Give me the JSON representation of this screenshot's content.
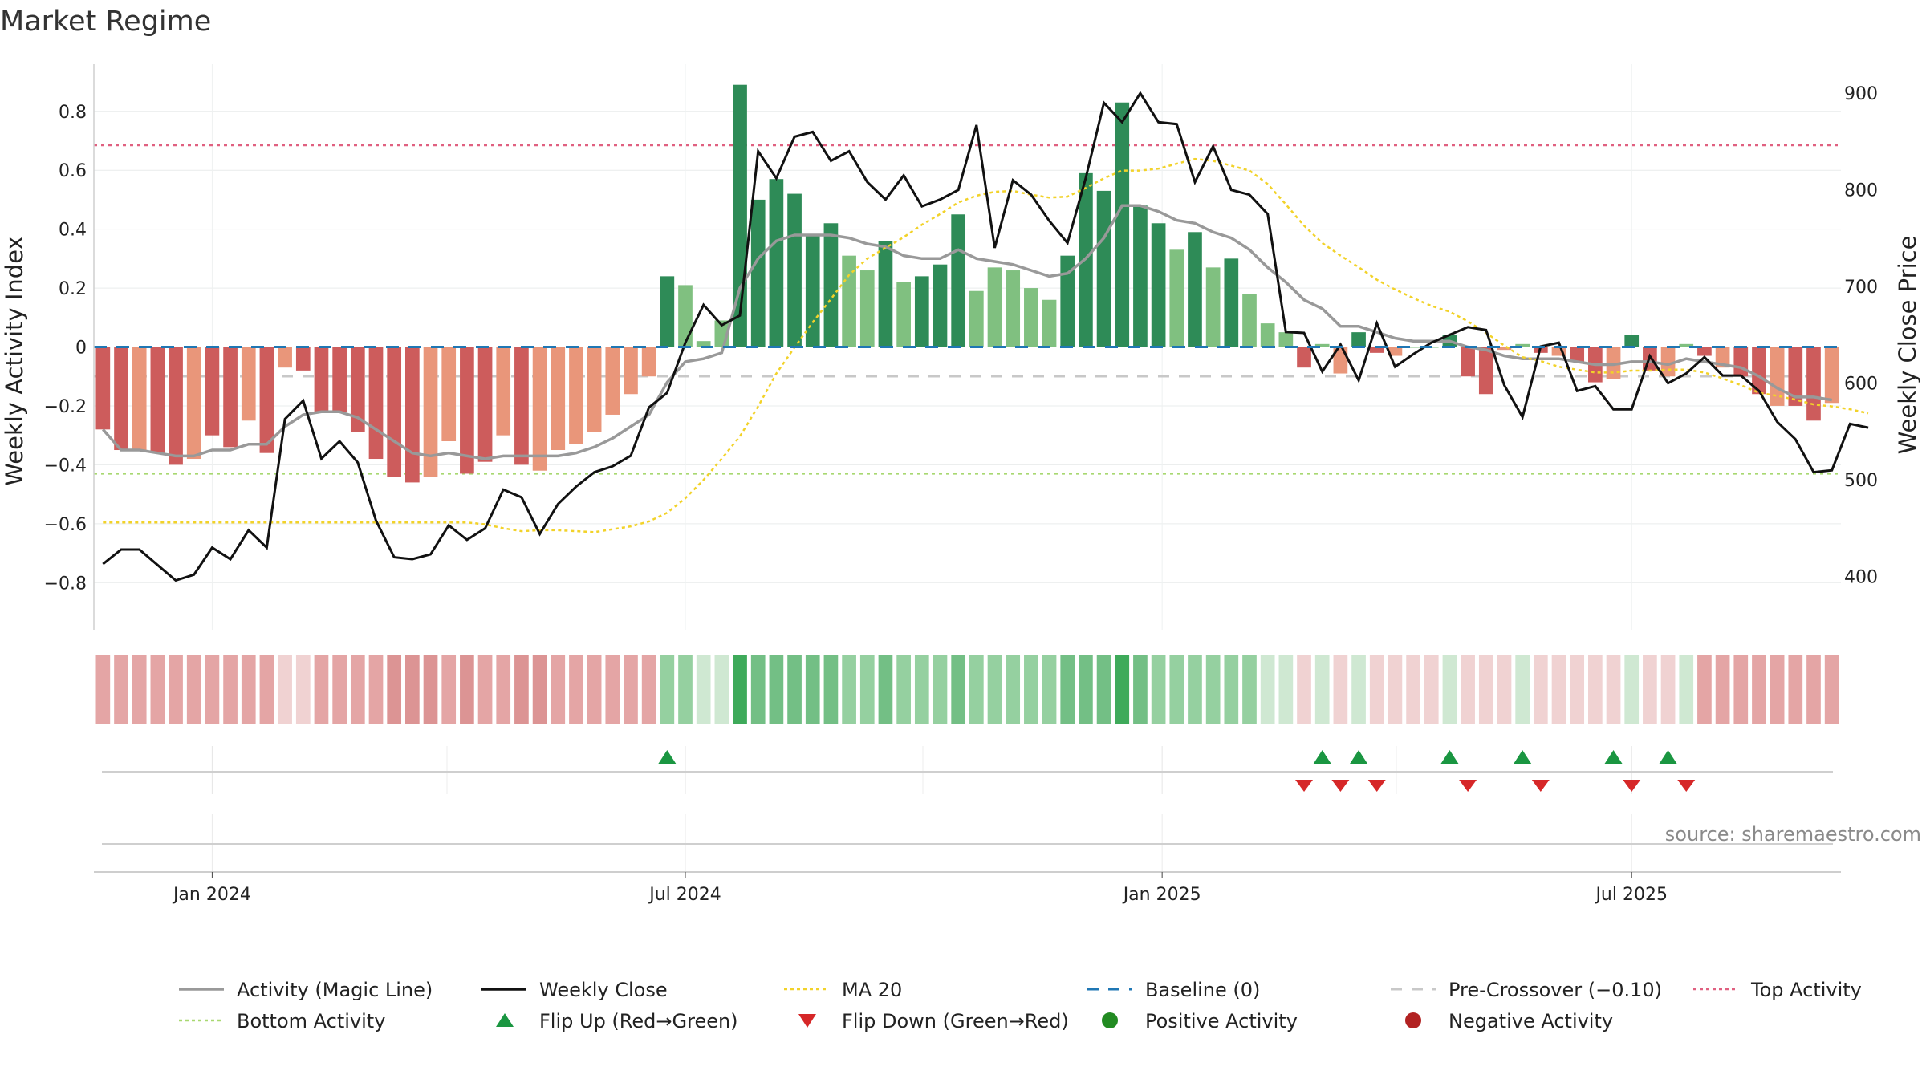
{
  "chart_data": {
    "type": "bar",
    "title": "Market Regime",
    "ylabel_left": "Weekly Activity Index",
    "ylabel_right": "Weekly Close Price",
    "source": "source: sharemaestro.com",
    "left_ylim": [
      -0.96,
      0.96
    ],
    "left_ticks": [
      "0.8",
      "0.6",
      "0.4",
      "0.2",
      "0",
      "−0.2",
      "−0.4",
      "−0.6",
      "−0.8"
    ],
    "left_tick_values": [
      0.8,
      0.6,
      0.4,
      0.2,
      0,
      -0.2,
      -0.4,
      -0.6,
      -0.8
    ],
    "right_ylim": [
      345,
      930
    ],
    "right_ticks": [
      "900",
      "800",
      "700",
      "600",
      "500",
      "400"
    ],
    "right_tick_values": [
      900,
      800,
      700,
      600,
      500,
      400
    ],
    "x_ticks": [
      {
        "label": "Jan 2024",
        "week": 6.5
      },
      {
        "label": "Jul 2024",
        "week": 32.5
      },
      {
        "label": "Jan 2025",
        "week": 58.7
      },
      {
        "label": "Jul 2025",
        "week": 84.5
      }
    ],
    "grid": true,
    "legend_position": "bottom",
    "colors": {
      "strong_pos": "#2e8b57",
      "weak_pos": "#80c080",
      "strong_neg": "#cd5c5c",
      "weak_neg": "#e9967a",
      "magic_line": "#999999",
      "close": "#111111",
      "ma20": "#f2d229",
      "baseline": "#1f77b4",
      "precross": "#c8c8c8",
      "top": "#e06080",
      "bottom": "#a8d870",
      "flip_up": "#1a9641",
      "flip_down": "#d62728",
      "pos_dot": "#228b22",
      "neg_dot": "#b22222"
    },
    "reference_lines": {
      "baseline": 0,
      "pre_crossover": -0.1,
      "top_activity": 0.685,
      "bottom_activity": -0.43
    },
    "activity": [
      -0.28,
      -0.35,
      -0.35,
      -0.36,
      -0.4,
      -0.38,
      -0.3,
      -0.34,
      -0.25,
      -0.36,
      -0.07,
      -0.08,
      -0.22,
      -0.22,
      -0.29,
      -0.38,
      -0.44,
      -0.46,
      -0.44,
      -0.32,
      -0.43,
      -0.39,
      -0.3,
      -0.4,
      -0.42,
      -0.35,
      -0.33,
      -0.29,
      -0.23,
      -0.16,
      -0.1,
      0.24,
      0.21,
      0.02,
      0.09,
      0.89,
      0.5,
      0.57,
      0.52,
      0.38,
      0.42,
      0.31,
      0.26,
      0.36,
      0.22,
      0.24,
      0.28,
      0.45,
      0.19,
      0.27,
      0.26,
      0.2,
      0.16,
      0.31,
      0.59,
      0.53,
      0.83,
      0.48,
      0.42,
      0.33,
      0.39,
      0.27,
      0.3,
      0.18,
      0.08,
      0.05,
      -0.07,
      0.01,
      -0.09,
      0.05,
      -0.02,
      -0.03,
      0.0,
      0.0,
      0.04,
      -0.1,
      -0.16,
      -0.01,
      0.01,
      -0.02,
      -0.03,
      -0.05,
      -0.12,
      -0.11,
      0.04,
      -0.08,
      -0.1,
      0.01,
      -0.03,
      -0.07,
      -0.1,
      -0.16,
      -0.2,
      -0.2,
      -0.25,
      -0.19
    ],
    "magic_line": [
      -0.28,
      -0.35,
      -0.35,
      -0.36,
      -0.37,
      -0.37,
      -0.35,
      -0.35,
      -0.33,
      -0.33,
      -0.27,
      -0.23,
      -0.22,
      -0.22,
      -0.24,
      -0.28,
      -0.32,
      -0.36,
      -0.37,
      -0.36,
      -0.37,
      -0.38,
      -0.37,
      -0.37,
      -0.37,
      -0.37,
      -0.36,
      -0.34,
      -0.31,
      -0.27,
      -0.23,
      -0.12,
      -0.05,
      -0.04,
      -0.02,
      0.2,
      0.3,
      0.36,
      0.38,
      0.38,
      0.38,
      0.37,
      0.35,
      0.34,
      0.31,
      0.3,
      0.3,
      0.33,
      0.3,
      0.29,
      0.28,
      0.26,
      0.24,
      0.25,
      0.3,
      0.37,
      0.48,
      0.48,
      0.46,
      0.43,
      0.42,
      0.39,
      0.37,
      0.33,
      0.27,
      0.22,
      0.16,
      0.13,
      0.07,
      0.07,
      0.05,
      0.03,
      0.02,
      0.02,
      0.02,
      0.0,
      -0.01,
      -0.03,
      -0.04,
      -0.04,
      -0.04,
      -0.05,
      -0.06,
      -0.06,
      -0.05,
      -0.05,
      -0.06,
      -0.04,
      -0.05,
      -0.06,
      -0.07,
      -0.1,
      -0.14,
      -0.17,
      -0.17,
      -0.18
    ],
    "close": [
      413,
      428,
      428,
      412,
      396,
      402,
      430,
      418,
      448,
      430,
      563,
      582,
      522,
      540,
      518,
      458,
      420,
      418,
      423,
      453,
      438,
      450,
      490,
      482,
      444,
      475,
      493,
      508,
      514,
      525,
      575,
      590,
      642,
      681,
      660,
      670,
      840,
      812,
      855,
      860,
      830,
      840,
      808,
      790,
      815,
      783,
      790,
      800,
      867,
      740,
      810,
      795,
      768,
      745,
      812,
      890,
      870,
      900,
      870,
      868,
      808,
      845,
      800,
      795,
      775,
      653,
      652,
      612,
      640,
      603,
      662,
      617,
      630,
      642,
      650,
      658,
      655,
      598,
      565,
      638,
      642,
      592,
      597,
      573,
      573,
      628,
      600,
      610,
      627,
      608,
      608,
      592,
      560,
      542,
      508,
      510,
      558,
      554
    ],
    "ma20": [
      456,
      456,
      456,
      456,
      456,
      456,
      456,
      456,
      456,
      456,
      456,
      456,
      456,
      456,
      456,
      456,
      456,
      456,
      456,
      456,
      456,
      454,
      450,
      447,
      448,
      448,
      447,
      446,
      449,
      452,
      457,
      466,
      481,
      500,
      522,
      545,
      576,
      610,
      637,
      663,
      687,
      712,
      729,
      740,
      751,
      764,
      775,
      787,
      794,
      798,
      799,
      795,
      792,
      793,
      802,
      812,
      820,
      820,
      822,
      827,
      832,
      830,
      825,
      820,
      806,
      785,
      763,
      745,
      732,
      720,
      707,
      697,
      688,
      680,
      674,
      664,
      652,
      639,
      627,
      623,
      617,
      614,
      611,
      611,
      613,
      613,
      614,
      614,
      611,
      605,
      598,
      590,
      587,
      583,
      578,
      576,
      573,
      569
    ],
    "heat_strip": [
      "n2",
      "n2",
      "n2",
      "n2",
      "n2",
      "n2",
      "n2",
      "n2",
      "n2",
      "n2",
      "n1",
      "n1",
      "n2",
      "n2",
      "n2",
      "n2",
      "n3",
      "n3",
      "n3",
      "n2",
      "n3",
      "n2",
      "n2",
      "n3",
      "n3",
      "n2",
      "n2",
      "n2",
      "n2",
      "n2",
      "n2",
      "p2",
      "p2",
      "p1",
      "p1",
      "p4",
      "p3",
      "p3",
      "p3",
      "p3",
      "p3",
      "p2",
      "p2",
      "p3",
      "p2",
      "p2",
      "p2",
      "p3",
      "p2",
      "p2",
      "p2",
      "p2",
      "p2",
      "p3",
      "p3",
      "p3",
      "p4",
      "p3",
      "p2",
      "p2",
      "p2",
      "p2",
      "p2",
      "p2",
      "p1",
      "p1",
      "n1",
      "p1",
      "n1",
      "p1",
      "n1",
      "n1",
      "n1",
      "n1",
      "p1",
      "n1",
      "n1",
      "n1",
      "p1",
      "n1",
      "n1",
      "n1",
      "n1",
      "n1",
      "p1",
      "n1",
      "n1",
      "p1",
      "n2",
      "n2",
      "n2",
      "n2",
      "n2",
      "n2",
      "n2",
      "n2"
    ],
    "flip_up_weeks": [
      31.5,
      67.5,
      69.5,
      74.5,
      78.5,
      83.5,
      86.5
    ],
    "flip_down_weeks": [
      66.5,
      68.5,
      70.5,
      75.5,
      79.5,
      84.5,
      87.5
    ],
    "legend": [
      {
        "label": "Activity (Magic Line)",
        "kind": "line",
        "color": "#999999"
      },
      {
        "label": "Weekly Close",
        "kind": "line",
        "color": "#111111"
      },
      {
        "label": "MA 20",
        "kind": "dotted",
        "color": "#f2d229"
      },
      {
        "label": "Baseline (0)",
        "kind": "dashed",
        "color": "#1f77b4"
      },
      {
        "label": "Pre-Crossover (−0.10)",
        "kind": "dashed",
        "color": "#c8c8c8"
      },
      {
        "label": "Top Activity",
        "kind": "dotted",
        "color": "#e06080"
      },
      {
        "label": "Bottom Activity",
        "kind": "dotted",
        "color": "#a8d870"
      },
      {
        "label": "Flip Up (Red→Green)",
        "kind": "tri-up",
        "color": "#1a9641"
      },
      {
        "label": "Flip Down (Green→Red)",
        "kind": "tri-down",
        "color": "#d62728"
      },
      {
        "label": "Positive Activity",
        "kind": "dot",
        "color": "#228b22"
      },
      {
        "label": "Negative Activity",
        "kind": "dot",
        "color": "#b22222"
      }
    ]
  }
}
